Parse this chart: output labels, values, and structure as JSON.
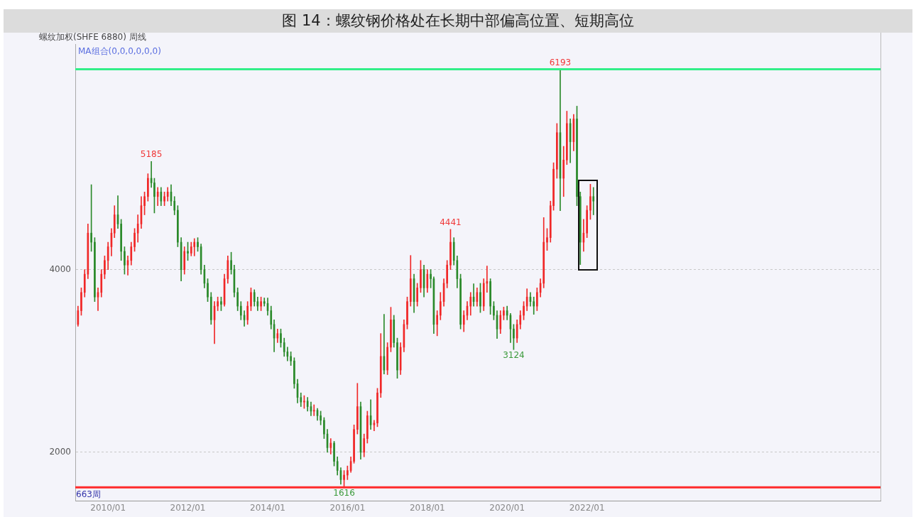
{
  "chart_data": {
    "type": "candlestick",
    "title": "图 14：螺纹钢价格处在长期中部偏高位置、短期高位",
    "x": [
      "2009-04",
      "2009-05",
      "2009-06",
      "2009-07",
      "2009-08",
      "2009-09",
      "2009-10",
      "2009-11",
      "2009-12",
      "2010-01",
      "2010-02",
      "2010-03",
      "2010-04",
      "2010-05",
      "2010-06",
      "2010-07",
      "2010-08",
      "2010-09",
      "2010-10",
      "2010-11",
      "2010-12",
      "2011-01",
      "2011-02",
      "2011-03",
      "2011-04",
      "2011-05",
      "2011-06",
      "2011-07",
      "2011-08",
      "2011-09",
      "2011-10",
      "2011-11",
      "2011-12",
      "2012-01",
      "2012-02",
      "2012-03",
      "2012-04",
      "2012-05",
      "2012-06",
      "2012-07",
      "2012-08",
      "2012-09",
      "2012-10",
      "2012-11",
      "2012-12",
      "2013-01",
      "2013-02",
      "2013-03",
      "2013-04",
      "2013-05",
      "2013-06",
      "2013-07",
      "2013-08",
      "2013-09",
      "2013-10",
      "2013-11",
      "2013-12",
      "2014-01",
      "2014-02",
      "2014-03",
      "2014-04",
      "2014-05",
      "2014-06",
      "2014-07",
      "2014-08",
      "2014-09",
      "2014-10",
      "2014-11",
      "2014-12",
      "2015-01",
      "2015-02",
      "2015-03",
      "2015-04",
      "2015-05",
      "2015-06",
      "2015-07",
      "2015-08",
      "2015-09",
      "2015-10",
      "2015-11",
      "2015-12",
      "2016-01",
      "2016-02",
      "2016-03",
      "2016-04",
      "2016-05",
      "2016-06",
      "2016-07",
      "2016-08",
      "2016-09",
      "2016-10",
      "2016-11",
      "2016-12",
      "2017-01",
      "2017-02",
      "2017-03",
      "2017-04",
      "2017-05",
      "2017-06",
      "2017-07",
      "2017-08",
      "2017-09",
      "2017-10",
      "2017-11",
      "2017-12",
      "2018-01",
      "2018-02",
      "2018-03",
      "2018-04",
      "2018-05",
      "2018-06",
      "2018-07",
      "2018-08",
      "2018-09",
      "2018-10",
      "2018-11",
      "2018-12",
      "2019-01",
      "2019-02",
      "2019-03",
      "2019-04",
      "2019-05",
      "2019-06",
      "2019-07",
      "2019-08",
      "2019-09",
      "2019-10",
      "2019-11",
      "2019-12",
      "2020-01",
      "2020-02",
      "2020-03",
      "2020-04",
      "2020-05",
      "2020-06",
      "2020-07",
      "2020-08",
      "2020-09",
      "2020-10",
      "2020-11",
      "2020-12",
      "2021-01",
      "2021-02",
      "2021-03",
      "2021-04",
      "2021-05",
      "2021-06",
      "2021-07",
      "2021-08",
      "2021-09",
      "2021-10",
      "2021-11",
      "2021-12",
      "2022-01",
      "2022-02",
      "2022-03"
    ],
    "ohlc": [
      [
        3400,
        3600,
        3380,
        3550
      ],
      [
        3550,
        3800,
        3500,
        3750
      ],
      [
        3750,
        4000,
        3700,
        3950
      ],
      [
        3950,
        4500,
        3900,
        4400
      ],
      [
        4400,
        4930,
        4200,
        4300
      ],
      [
        4300,
        4350,
        3650,
        3700
      ],
      [
        3700,
        3800,
        3550,
        3750
      ],
      [
        3750,
        4000,
        3700,
        3950
      ],
      [
        3950,
        4150,
        3900,
        4100
      ],
      [
        4100,
        4300,
        4000,
        4250
      ],
      [
        4250,
        4450,
        4150,
        4400
      ],
      [
        4400,
        4700,
        4350,
        4600
      ],
      [
        4600,
        4810,
        4450,
        4500
      ],
      [
        4500,
        4550,
        4100,
        4200
      ],
      [
        4200,
        4250,
        3950,
        4050
      ],
      [
        4050,
        4150,
        3940,
        4100
      ],
      [
        4100,
        4300,
        4050,
        4250
      ],
      [
        4250,
        4450,
        4200,
        4400
      ],
      [
        4400,
        4600,
        4300,
        4500
      ],
      [
        4500,
        4800,
        4450,
        4700
      ],
      [
        4700,
        4850,
        4600,
        4800
      ],
      [
        4800,
        5050,
        4750,
        5000
      ],
      [
        5000,
        5185,
        4900,
        4950
      ],
      [
        4950,
        5000,
        4620,
        4800
      ],
      [
        4800,
        4900,
        4700,
        4850
      ],
      [
        4850,
        4900,
        4700,
        4750
      ],
      [
        4750,
        4850,
        4700,
        4800
      ],
      [
        4800,
        4900,
        4750,
        4850
      ],
      [
        4850,
        4930,
        4700,
        4750
      ],
      [
        4750,
        4800,
        4600,
        4650
      ],
      [
        4650,
        4700,
        4250,
        4300
      ],
      [
        4300,
        4350,
        3875,
        4000
      ],
      [
        4000,
        4250,
        3950,
        4200
      ],
      [
        4200,
        4300,
        4100,
        4180
      ],
      [
        4180,
        4300,
        4150,
        4250
      ],
      [
        4250,
        4340,
        4150,
        4300
      ],
      [
        4300,
        4350,
        4200,
        4250
      ],
      [
        4250,
        4280,
        3950,
        4000
      ],
      [
        4000,
        4050,
        3800,
        3850
      ],
      [
        3850,
        3900,
        3650,
        3700
      ],
      [
        3700,
        3750,
        3400,
        3450
      ],
      [
        3450,
        3650,
        3190,
        3600
      ],
      [
        3600,
        3700,
        3550,
        3650
      ],
      [
        3650,
        3700,
        3550,
        3620
      ],
      [
        3620,
        3950,
        3600,
        3900
      ],
      [
        3900,
        4150,
        3850,
        4100
      ],
      [
        4100,
        4190,
        3950,
        4000
      ],
      [
        4000,
        4050,
        3700,
        3750
      ],
      [
        3750,
        3800,
        3550,
        3600
      ],
      [
        3600,
        3650,
        3450,
        3500
      ],
      [
        3500,
        3550,
        3380,
        3450
      ],
      [
        3450,
        3650,
        3400,
        3600
      ],
      [
        3600,
        3800,
        3550,
        3750
      ],
      [
        3750,
        3780,
        3600,
        3650
      ],
      [
        3650,
        3700,
        3550,
        3600
      ],
      [
        3600,
        3700,
        3550,
        3650
      ],
      [
        3650,
        3690,
        3600,
        3630
      ],
      [
        3630,
        3690,
        3500,
        3550
      ],
      [
        3550,
        3600,
        3350,
        3400
      ],
      [
        3400,
        3450,
        3100,
        3250
      ],
      [
        3250,
        3350,
        3200,
        3300
      ],
      [
        3300,
        3350,
        3150,
        3200
      ],
      [
        3200,
        3250,
        3050,
        3100
      ],
      [
        3100,
        3150,
        3000,
        3050
      ],
      [
        3050,
        3100,
        2950,
        3000
      ],
      [
        3000,
        3035,
        2700,
        2750
      ],
      [
        2750,
        2800,
        2540,
        2600
      ],
      [
        2600,
        2650,
        2500,
        2550
      ],
      [
        2550,
        2620,
        2480,
        2560
      ],
      [
        2560,
        2600,
        2450,
        2500
      ],
      [
        2500,
        2550,
        2400,
        2450
      ],
      [
        2450,
        2520,
        2400,
        2460
      ],
      [
        2460,
        2480,
        2350,
        2400
      ],
      [
        2400,
        2450,
        2300,
        2350
      ],
      [
        2350,
        2380,
        2150,
        2200
      ],
      [
        2200,
        2250,
        2000,
        2050
      ],
      [
        2050,
        2150,
        1980,
        2100
      ],
      [
        2100,
        2120,
        1850,
        1900
      ],
      [
        1900,
        1950,
        1750,
        1800
      ],
      [
        1800,
        1830,
        1650,
        1700
      ],
      [
        1700,
        1800,
        1616,
        1750
      ],
      [
        1750,
        1850,
        1700,
        1800
      ],
      [
        1800,
        1950,
        1780,
        1900
      ],
      [
        1900,
        2300,
        1880,
        2250
      ],
      [
        2250,
        2755,
        2200,
        2500
      ],
      [
        2500,
        2550,
        1923,
        2000
      ],
      [
        2000,
        2200,
        1950,
        2150
      ],
      [
        2150,
        2450,
        2100,
        2400
      ],
      [
        2400,
        2576,
        2250,
        2300
      ],
      [
        2300,
        2350,
        2234,
        2320
      ],
      [
        2320,
        2700,
        2280,
        2650
      ],
      [
        2650,
        3300,
        2600,
        3050
      ],
      [
        3050,
        3510,
        2856,
        2900
      ],
      [
        2900,
        3200,
        2850,
        3150
      ],
      [
        3150,
        3588,
        3100,
        3450
      ],
      [
        3450,
        3500,
        3150,
        3200
      ],
      [
        3200,
        3250,
        2810,
        2900
      ],
      [
        2900,
        3200,
        2850,
        3150
      ],
      [
        3150,
        3450,
        3100,
        3400
      ],
      [
        3400,
        3700,
        3350,
        3650
      ],
      [
        3650,
        4155,
        3600,
        3900
      ],
      [
        3900,
        3950,
        3530,
        3650
      ],
      [
        3650,
        3850,
        3600,
        3800
      ],
      [
        3800,
        4100,
        3750,
        4000
      ],
      [
        4000,
        4050,
        3700,
        3800
      ],
      [
        3800,
        4000,
        3750,
        3950
      ],
      [
        3950,
        4000,
        3800,
        3900
      ],
      [
        3900,
        3920,
        3300,
        3400
      ],
      [
        3400,
        3550,
        3275,
        3500
      ],
      [
        3500,
        3750,
        3450,
        3650
      ],
      [
        3650,
        3900,
        3600,
        3850
      ],
      [
        3850,
        4100,
        3800,
        4050
      ],
      [
        4050,
        4441,
        4000,
        4300
      ],
      [
        4300,
        4350,
        4050,
        4100
      ],
      [
        4100,
        4150,
        3800,
        3900
      ],
      [
        3900,
        3950,
        3350,
        3400
      ],
      [
        3400,
        3550,
        3320,
        3500
      ],
      [
        3500,
        3650,
        3450,
        3600
      ],
      [
        3600,
        3750,
        3500,
        3700
      ],
      [
        3700,
        3845,
        3600,
        3650
      ],
      [
        3650,
        3800,
        3600,
        3750
      ],
      [
        3750,
        3850,
        3530,
        3600
      ],
      [
        3600,
        3900,
        3550,
        3850
      ],
      [
        3850,
        4040,
        3750,
        3870
      ],
      [
        3870,
        3900,
        3510,
        3600
      ],
      [
        3600,
        3650,
        3450,
        3500
      ],
      [
        3500,
        3550,
        3245,
        3350
      ],
      [
        3350,
        3550,
        3300,
        3500
      ],
      [
        3500,
        3590,
        3450,
        3550
      ],
      [
        3550,
        3600,
        3450,
        3500
      ],
      [
        3500,
        3520,
        3200,
        3350
      ],
      [
        3350,
        3400,
        3124,
        3250
      ],
      [
        3250,
        3450,
        3200,
        3400
      ],
      [
        3400,
        3550,
        3350,
        3500
      ],
      [
        3500,
        3650,
        3450,
        3600
      ],
      [
        3600,
        3790,
        3550,
        3700
      ],
      [
        3700,
        3750,
        3600,
        3650
      ],
      [
        3650,
        3700,
        3510,
        3600
      ],
      [
        3600,
        3800,
        3550,
        3750
      ],
      [
        3750,
        3900,
        3700,
        3850
      ],
      [
        3850,
        4570,
        3800,
        4300
      ],
      [
        4300,
        4450,
        4210,
        4350
      ],
      [
        4350,
        4750,
        4300,
        4700
      ],
      [
        4700,
        5170,
        4650,
        5100
      ],
      [
        5100,
        5600,
        5000,
        5500
      ],
      [
        5500,
        6193,
        4645,
        5000
      ],
      [
        5000,
        5350,
        4800,
        5200
      ],
      [
        5200,
        5735,
        5150,
        5600
      ],
      [
        5600,
        5650,
        5170,
        5400
      ],
      [
        5400,
        5700,
        5300,
        5650
      ],
      [
        5650,
        5790,
        4700,
        4800
      ],
      [
        4800,
        4850,
        4055,
        4300
      ],
      [
        4300,
        4550,
        4200,
        4400
      ],
      [
        4400,
        4700,
        4350,
        4650
      ],
      [
        4650,
        4935,
        4550,
        4800
      ],
      [
        4800,
        4900,
        4600,
        4750
      ]
    ],
    "colors": [
      "#f02828",
      "#f02828",
      "#f02828",
      "#f02828",
      "#2b8a2b",
      "#2b8a2b",
      "#f02828",
      "#f02828",
      "#f02828",
      "#f02828",
      "#f02828",
      "#f02828",
      "#2b8a2b",
      "#2b8a2b",
      "#2b8a2b",
      "#f02828",
      "#f02828",
      "#f02828",
      "#f02828",
      "#f02828",
      "#f02828",
      "#f02828",
      "#2b8a2b",
      "#2b8a2b",
      "#f02828",
      "#2b8a2b",
      "#f02828",
      "#f02828",
      "#2b8a2b",
      "#2b8a2b",
      "#2b8a2b",
      "#2b8a2b",
      "#f02828",
      "#2b8a2b",
      "#f02828",
      "#f02828",
      "#2b8a2b",
      "#2b8a2b",
      "#2b8a2b",
      "#2b8a2b",
      "#2b8a2b",
      "#f02828",
      "#f02828",
      "#2b8a2b",
      "#f02828",
      "#f02828",
      "#2b8a2b",
      "#2b8a2b",
      "#2b8a2b",
      "#2b8a2b",
      "#2b8a2b",
      "#f02828",
      "#f02828",
      "#2b8a2b",
      "#2b8a2b",
      "#f02828",
      "#2b8a2b",
      "#2b8a2b",
      "#2b8a2b",
      "#2b8a2b",
      "#f02828",
      "#2b8a2b",
      "#2b8a2b",
      "#2b8a2b",
      "#2b8a2b",
      "#2b8a2b",
      "#2b8a2b",
      "#2b8a2b",
      "#f02828",
      "#2b8a2b",
      "#2b8a2b",
      "#f02828",
      "#2b8a2b",
      "#2b8a2b",
      "#2b8a2b",
      "#2b8a2b",
      "#f02828",
      "#2b8a2b",
      "#2b8a2b",
      "#2b8a2b",
      "#f02828",
      "#f02828",
      "#f02828",
      "#f02828",
      "#f02828",
      "#2b8a2b",
      "#f02828",
      "#f02828",
      "#2b8a2b",
      "#f02828",
      "#f02828",
      "#f02828",
      "#2b8a2b",
      "#f02828",
      "#f02828",
      "#2b8a2b",
      "#2b8a2b",
      "#f02828",
      "#f02828",
      "#f02828",
      "#f02828",
      "#2b8a2b",
      "#f02828",
      "#f02828",
      "#2b8a2b",
      "#f02828",
      "#2b8a2b",
      "#2b8a2b",
      "#f02828",
      "#f02828",
      "#f02828",
      "#f02828",
      "#f02828",
      "#2b8a2b",
      "#2b8a2b",
      "#2b8a2b",
      "#f02828",
      "#f02828",
      "#f02828",
      "#2b8a2b",
      "#f02828",
      "#2b8a2b",
      "#f02828",
      "#f02828",
      "#2b8a2b",
      "#2b8a2b",
      "#2b8a2b",
      "#f02828",
      "#f02828",
      "#2b8a2b",
      "#2b8a2b",
      "#2b8a2b",
      "#f02828",
      "#f02828",
      "#f02828",
      "#f02828",
      "#2b8a2b",
      "#2b8a2b",
      "#f02828",
      "#f02828",
      "#f02828",
      "#f02828",
      "#f02828",
      "#f02828",
      "#f02828",
      "#2b8a2b",
      "#f02828",
      "#f02828",
      "#2b8a2b",
      "#f02828",
      "#2b8a2b",
      "#2b8a2b",
      "#f02828",
      "#f02828",
      "#f02828",
      "#2b8a2b"
    ],
    "xlim": [
      "2009-03-07",
      "2029-05-10"
    ],
    "xticks": [
      {
        "value": "2010-01",
        "label": "2010/01"
      },
      {
        "value": "2012-01",
        "label": "2012/01"
      },
      {
        "value": "2014-01",
        "label": "2014/01"
      },
      {
        "value": "2016-01",
        "label": "2016/01"
      },
      {
        "value": "2018-01",
        "label": "2018/01"
      },
      {
        "value": "2020-01",
        "label": "2020/01"
      },
      {
        "value": "2022-01",
        "label": "2022/01"
      }
    ],
    "ylim": [
      1470,
      6470
    ],
    "yticks": [
      2000,
      4000
    ],
    "grid": "y",
    "ref_lines": [
      {
        "axis": "y",
        "value": 6193,
        "color": "#33ee88"
      },
      {
        "axis": "y",
        "value": 1616,
        "color": "#ff2a2a"
      }
    ],
    "annotations": [
      "螺纹加权(SHFE 6880) 周线",
      "MA组合(0,0,0,0,0,0)",
      "663周",
      {
        "text": "6193",
        "x": "2021-05",
        "y": 6193
      },
      {
        "text": "5185",
        "x": "2011-02",
        "y": 5185
      },
      {
        "text": "4441",
        "x": "2018-08",
        "y": 4441
      },
      {
        "text": "3124",
        "x": "2020-03",
        "y": 3124
      },
      {
        "text": "1616",
        "x": "2015-12",
        "y": 1616
      }
    ]
  }
}
